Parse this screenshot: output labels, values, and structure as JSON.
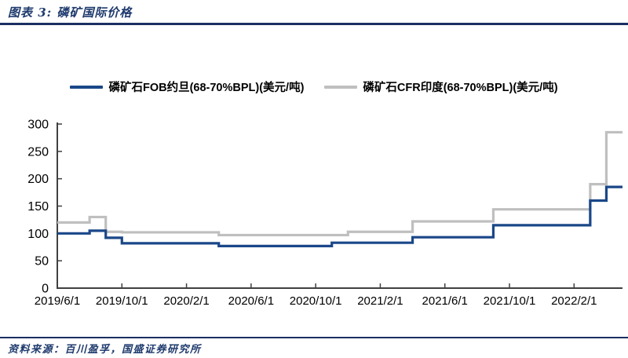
{
  "header": {
    "title": "图表 3: 磷矿国际价格"
  },
  "footer": {
    "source": "资料来源：百川盈孚，国盛证券研究所"
  },
  "theme": {
    "rule_color": "#1b2f63",
    "title_color": "#1e3a6d"
  },
  "chart_data": {
    "type": "line",
    "title": "磷矿国际价格",
    "ylabel": "美元/吨",
    "legend_position": "top",
    "grid": false,
    "axis_color": "#404040",
    "ylim": [
      0,
      300
    ],
    "ytick_step": 50,
    "xtick_every": 4,
    "xtick_labels": [
      "2019/6/1",
      "2019/10/1",
      "2020/2/1",
      "2020/6/1",
      "2020/10/1",
      "2021/2/1",
      "2021/6/1",
      "2021/10/1",
      "2022/2/1"
    ],
    "x": [
      "2019/6",
      "2019/7",
      "2019/8",
      "2019/9",
      "2019/10",
      "2019/11",
      "2019/12",
      "2020/1",
      "2020/2",
      "2020/3",
      "2020/4",
      "2020/5",
      "2020/6",
      "2020/7",
      "2020/8",
      "2020/9",
      "2020/10",
      "2020/11",
      "2020/12",
      "2021/1",
      "2021/2",
      "2021/3",
      "2021/4",
      "2021/5",
      "2021/6",
      "2021/7",
      "2021/8",
      "2021/9",
      "2021/10",
      "2021/11",
      "2021/12",
      "2022/1",
      "2022/2",
      "2022/3",
      "2022/4",
      "2022/5"
    ],
    "series": [
      {
        "name": "磷矿石FOB约旦(68-70%BPL)(美元/吨)",
        "color": "#1a4788",
        "values": [
          100,
          100,
          105,
          92,
          82,
          82,
          82,
          82,
          82,
          82,
          77,
          77,
          77,
          77,
          77,
          77,
          77,
          83,
          83,
          83,
          83,
          83,
          93,
          93,
          93,
          93,
          93,
          115,
          115,
          115,
          115,
          115,
          115,
          160,
          185,
          185
        ]
      },
      {
        "name": "磷矿石CFR印度(68-70%BPL)(美元/吨)",
        "color": "#bfbfbf",
        "values": [
          120,
          120,
          130,
          103,
          102,
          102,
          102,
          102,
          102,
          102,
          97,
          97,
          97,
          97,
          97,
          97,
          97,
          97,
          103,
          103,
          103,
          103,
          122,
          122,
          122,
          122,
          122,
          144,
          144,
          144,
          144,
          144,
          144,
          190,
          285,
          285
        ]
      }
    ]
  }
}
